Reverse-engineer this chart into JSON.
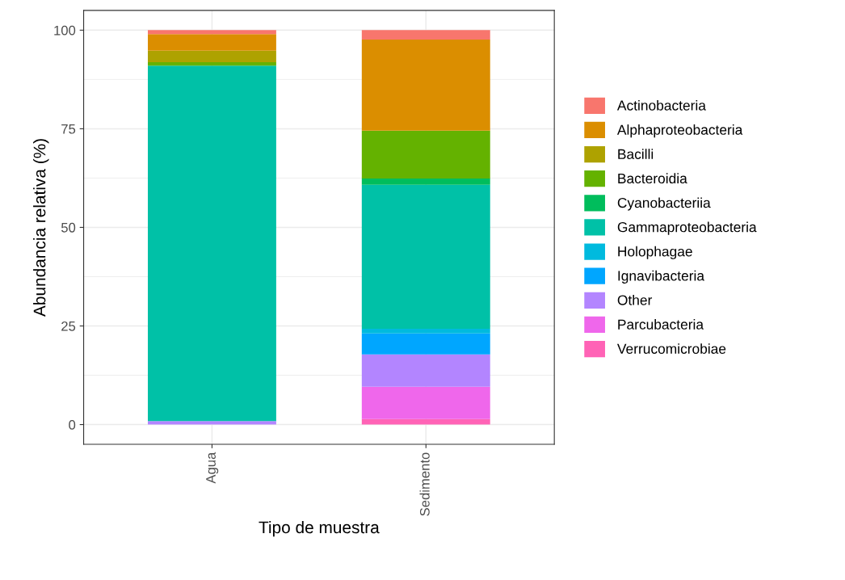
{
  "chart_data": {
    "type": "bar",
    "stacked": true,
    "xlabel": "Tipo de muestra",
    "ylabel": "Abundancia relativa (%)",
    "categories": [
      "Agua",
      "Sedimento"
    ],
    "series": [
      {
        "name": "Verrucomicrobiae",
        "color": "#ff63b6",
        "values": [
          0,
          1.4
        ]
      },
      {
        "name": "Parcubacteria",
        "color": "#ef67eb",
        "values": [
          0,
          8.2
        ]
      },
      {
        "name": "Other",
        "color": "#b385ff",
        "values": [
          0.9,
          8.2
        ]
      },
      {
        "name": "Ignavibacteria",
        "color": "#00a6ff",
        "values": [
          0,
          5.3
        ]
      },
      {
        "name": "Holophagae",
        "color": "#00bade",
        "values": [
          0,
          1.2
        ]
      },
      {
        "name": "Gammaproteobacteria",
        "color": "#00c1a7",
        "values": [
          90.1,
          36.5
        ]
      },
      {
        "name": "Cyanobacteriia",
        "color": "#00bd5c",
        "values": [
          0,
          1.6
        ]
      },
      {
        "name": "Bacteroidia",
        "color": "#64b200",
        "values": [
          0.9,
          12.1
        ]
      },
      {
        "name": "Bacilli",
        "color": "#aea200",
        "values": [
          2.9,
          0
        ]
      },
      {
        "name": "Alphaproteobacteria",
        "color": "#db8e00",
        "values": [
          4.2,
          23.1
        ]
      },
      {
        "name": "Actinobacteria",
        "color": "#f8766d",
        "values": [
          1.0,
          2.4
        ]
      }
    ],
    "ylim": [
      -5,
      105
    ],
    "yticks": [
      0,
      25,
      50,
      75,
      100
    ],
    "grid": true,
    "legend": "right"
  }
}
